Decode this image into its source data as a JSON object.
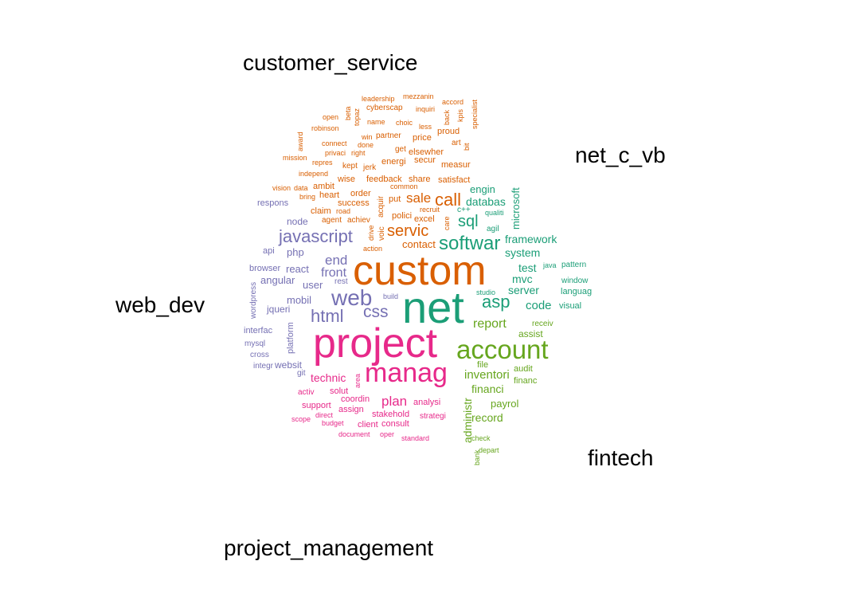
{
  "group_labels": {
    "customer_service": "customer_service",
    "net_c_vb": "net_c_vb",
    "web_dev": "web_dev",
    "fintech": "fintech",
    "project_management": "project_management"
  },
  "colors": {
    "customer_service": "#d95f02",
    "net_c_vb": "#1b9e77",
    "web_dev": "#7570b3",
    "fintech": "#66a61e",
    "project_management": "#e7298a"
  },
  "words": [
    {
      "text": "custom",
      "group": "customer_service"
    },
    {
      "text": "net",
      "group": "net_c_vb"
    },
    {
      "text": "project",
      "group": "project_management"
    },
    {
      "text": "manag",
      "group": "project_management"
    },
    {
      "text": "account",
      "group": "fintech"
    },
    {
      "text": "web",
      "group": "web_dev"
    },
    {
      "text": "javascript",
      "group": "web_dev"
    },
    {
      "text": "softwar",
      "group": "net_c_vb"
    },
    {
      "text": "html",
      "group": "web_dev"
    },
    {
      "text": "css",
      "group": "web_dev"
    },
    {
      "text": "asp",
      "group": "net_c_vb"
    },
    {
      "text": "servic",
      "group": "customer_service"
    },
    {
      "text": "call",
      "group": "customer_service"
    },
    {
      "text": "sale",
      "group": "customer_service"
    },
    {
      "text": "sql",
      "group": "net_c_vb"
    },
    {
      "text": "end",
      "group": "web_dev"
    },
    {
      "text": "front",
      "group": "web_dev"
    },
    {
      "text": "report",
      "group": "fintech"
    },
    {
      "text": "plan",
      "group": "project_management"
    },
    {
      "text": "code",
      "group": "net_c_vb"
    },
    {
      "text": "inventori",
      "group": "fintech"
    },
    {
      "text": "technic",
      "group": "project_management"
    },
    {
      "text": "framework",
      "group": "net_c_vb"
    },
    {
      "text": "system",
      "group": "net_c_vb"
    },
    {
      "text": "databas",
      "group": "net_c_vb"
    },
    {
      "text": "test",
      "group": "net_c_vb"
    },
    {
      "text": "server",
      "group": "net_c_vb"
    },
    {
      "text": "mvc",
      "group": "net_c_vb"
    },
    {
      "text": "financi",
      "group": "fintech"
    },
    {
      "text": "record",
      "group": "fintech"
    },
    {
      "text": "payrol",
      "group": "fintech"
    },
    {
      "text": "administr",
      "group": "fintech"
    },
    {
      "text": "contact",
      "group": "customer_service"
    },
    {
      "text": "engin",
      "group": "net_c_vb"
    },
    {
      "text": "microsoft",
      "group": "net_c_vb"
    },
    {
      "text": "react",
      "group": "web_dev"
    },
    {
      "text": "angular",
      "group": "web_dev"
    },
    {
      "text": "user",
      "group": "web_dev"
    },
    {
      "text": "mobil",
      "group": "web_dev"
    },
    {
      "text": "php",
      "group": "web_dev"
    },
    {
      "text": "jqueri",
      "group": "web_dev"
    },
    {
      "text": "websit",
      "group": "web_dev"
    },
    {
      "text": "node",
      "group": "web_dev"
    },
    {
      "text": "api",
      "group": "web_dev"
    },
    {
      "text": "browser",
      "group": "web_dev"
    },
    {
      "text": "interfac",
      "group": "web_dev"
    },
    {
      "text": "mysql",
      "group": "web_dev"
    },
    {
      "text": "cross",
      "group": "web_dev"
    },
    {
      "text": "integr",
      "group": "web_dev"
    },
    {
      "text": "git",
      "group": "web_dev"
    },
    {
      "text": "platform",
      "group": "web_dev"
    },
    {
      "text": "wordpress",
      "group": "web_dev"
    },
    {
      "text": "respons",
      "group": "web_dev"
    },
    {
      "text": "rest",
      "group": "web_dev"
    },
    {
      "text": "build",
      "group": "web_dev"
    },
    {
      "text": "solut",
      "group": "project_management"
    },
    {
      "text": "activ",
      "group": "project_management"
    },
    {
      "text": "coordin",
      "group": "project_management"
    },
    {
      "text": "support",
      "group": "project_management"
    },
    {
      "text": "assign",
      "group": "project_management"
    },
    {
      "text": "stakehold",
      "group": "project_management"
    },
    {
      "text": "analysi",
      "group": "project_management"
    },
    {
      "text": "strategi",
      "group": "project_management"
    },
    {
      "text": "client",
      "group": "project_management"
    },
    {
      "text": "consult",
      "group": "project_management"
    },
    {
      "text": "scope",
      "group": "project_management"
    },
    {
      "text": "direct",
      "group": "project_management"
    },
    {
      "text": "budget",
      "group": "project_management"
    },
    {
      "text": "document",
      "group": "project_management"
    },
    {
      "text": "oper",
      "group": "project_management"
    },
    {
      "text": "standard",
      "group": "project_management"
    },
    {
      "text": "area",
      "group": "project_management"
    },
    {
      "text": "assist",
      "group": "fintech"
    },
    {
      "text": "receiv",
      "group": "fintech"
    },
    {
      "text": "file",
      "group": "fintech"
    },
    {
      "text": "audit",
      "group": "fintech"
    },
    {
      "text": "financ",
      "group": "fintech"
    },
    {
      "text": "check",
      "group": "fintech"
    },
    {
      "text": "depart",
      "group": "fintech"
    },
    {
      "text": "bank",
      "group": "fintech"
    },
    {
      "text": "agil",
      "group": "net_c_vb"
    },
    {
      "text": "qualiti",
      "group": "net_c_vb"
    },
    {
      "text": "c++",
      "group": "net_c_vb"
    },
    {
      "text": "java",
      "group": "net_c_vb"
    },
    {
      "text": "pattern",
      "group": "net_c_vb"
    },
    {
      "text": "window",
      "group": "net_c_vb"
    },
    {
      "text": "languag",
      "group": "net_c_vb"
    },
    {
      "text": "visual",
      "group": "net_c_vb"
    },
    {
      "text": "studio",
      "group": "net_c_vb"
    },
    {
      "text": "leadership",
      "group": "customer_service"
    },
    {
      "text": "mezzanin",
      "group": "customer_service"
    },
    {
      "text": "accord",
      "group": "customer_service"
    },
    {
      "text": "cyberscap",
      "group": "customer_service"
    },
    {
      "text": "inquiri",
      "group": "customer_service"
    },
    {
      "text": "open",
      "group": "customer_service"
    },
    {
      "text": "beta",
      "group": "customer_service"
    },
    {
      "text": "topaz",
      "group": "customer_service"
    },
    {
      "text": "name",
      "group": "customer_service"
    },
    {
      "text": "choic",
      "group": "customer_service"
    },
    {
      "text": "back",
      "group": "customer_service"
    },
    {
      "text": "kpis",
      "group": "customer_service"
    },
    {
      "text": "specialist",
      "group": "customer_service"
    },
    {
      "text": "robinson",
      "group": "customer_service"
    },
    {
      "text": "win",
      "group": "customer_service"
    },
    {
      "text": "partner",
      "group": "customer_service"
    },
    {
      "text": "less",
      "group": "customer_service"
    },
    {
      "text": "proud",
      "group": "customer_service"
    },
    {
      "text": "award",
      "group": "customer_service"
    },
    {
      "text": "connect",
      "group": "customer_service"
    },
    {
      "text": "done",
      "group": "customer_service"
    },
    {
      "text": "price",
      "group": "customer_service"
    },
    {
      "text": "art",
      "group": "customer_service"
    },
    {
      "text": "bit",
      "group": "customer_service"
    },
    {
      "text": "privaci",
      "group": "customer_service"
    },
    {
      "text": "right",
      "group": "customer_service"
    },
    {
      "text": "get",
      "group": "customer_service"
    },
    {
      "text": "elsewher",
      "group": "customer_service"
    },
    {
      "text": "mission",
      "group": "customer_service"
    },
    {
      "text": "repres",
      "group": "customer_service"
    },
    {
      "text": "kept",
      "group": "customer_service"
    },
    {
      "text": "jerk",
      "group": "customer_service"
    },
    {
      "text": "energi",
      "group": "customer_service"
    },
    {
      "text": "secur",
      "group": "customer_service"
    },
    {
      "text": "measur",
      "group": "customer_service"
    },
    {
      "text": "independ",
      "group": "customer_service"
    },
    {
      "text": "wise",
      "group": "customer_service"
    },
    {
      "text": "feedback",
      "group": "customer_service"
    },
    {
      "text": "share",
      "group": "customer_service"
    },
    {
      "text": "satisfact",
      "group": "customer_service"
    },
    {
      "text": "vision",
      "group": "customer_service"
    },
    {
      "text": "data",
      "group": "customer_service"
    },
    {
      "text": "ambit",
      "group": "customer_service"
    },
    {
      "text": "common",
      "group": "customer_service"
    },
    {
      "text": "bring",
      "group": "customer_service"
    },
    {
      "text": "heart",
      "group": "customer_service"
    },
    {
      "text": "order",
      "group": "customer_service"
    },
    {
      "text": "success",
      "group": "customer_service"
    },
    {
      "text": "acquir",
      "group": "customer_service"
    },
    {
      "text": "put",
      "group": "customer_service"
    },
    {
      "text": "claim",
      "group": "customer_service"
    },
    {
      "text": "road",
      "group": "customer_service"
    },
    {
      "text": "recruit",
      "group": "customer_service"
    },
    {
      "text": "agent",
      "group": "customer_service"
    },
    {
      "text": "achiev",
      "group": "customer_service"
    },
    {
      "text": "drive",
      "group": "customer_service"
    },
    {
      "text": "polici",
      "group": "customer_service"
    },
    {
      "text": "excel",
      "group": "customer_service"
    },
    {
      "text": "care",
      "group": "customer_service"
    },
    {
      "text": "voic",
      "group": "customer_service"
    },
    {
      "text": "action",
      "group": "customer_service"
    }
  ]
}
